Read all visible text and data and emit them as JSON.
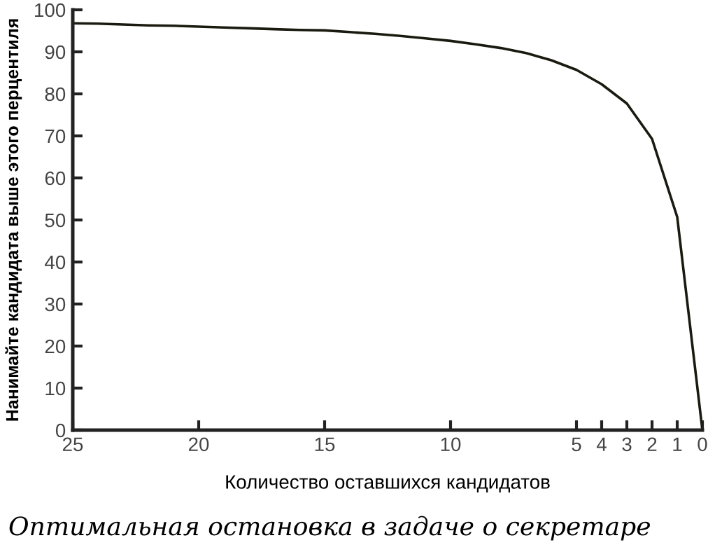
{
  "chart_data": {
    "type": "line",
    "xlabel": "Количество оставшихся кандидатов",
    "ylabel": "Нанимайте кандидата выше этого перцентиля",
    "x": [
      25,
      24,
      23,
      22,
      21,
      20,
      19,
      18,
      17,
      16,
      15,
      14,
      13,
      12,
      11,
      10,
      9,
      8,
      7,
      6,
      5,
      4,
      3,
      2,
      1,
      0
    ],
    "series": [
      {
        "color": "#1a1a10",
        "values": [
          96.8,
          96.7,
          96.5,
          96.3,
          96.2,
          96.0,
          95.8,
          95.6,
          95.4,
          95.2,
          95.1,
          94.7,
          94.3,
          93.8,
          93.2,
          92.6,
          91.8,
          90.9,
          89.7,
          88.0,
          85.7,
          82.3,
          77.7,
          69.3,
          50.7,
          0
        ]
      }
    ],
    "xlim": [
      25,
      0
    ],
    "xticks": [
      25,
      20,
      15,
      10,
      5,
      4,
      3,
      2,
      1,
      0
    ],
    "ylim": [
      0,
      100
    ],
    "yticks": [
      0,
      10,
      20,
      30,
      40,
      50,
      60,
      70,
      80,
      90,
      100
    ],
    "grid": false,
    "legend": false,
    "marker": "none",
    "line_style": "solid",
    "annotations": [
      "Оптимальная остановка в задаче о секретаре"
    ]
  }
}
